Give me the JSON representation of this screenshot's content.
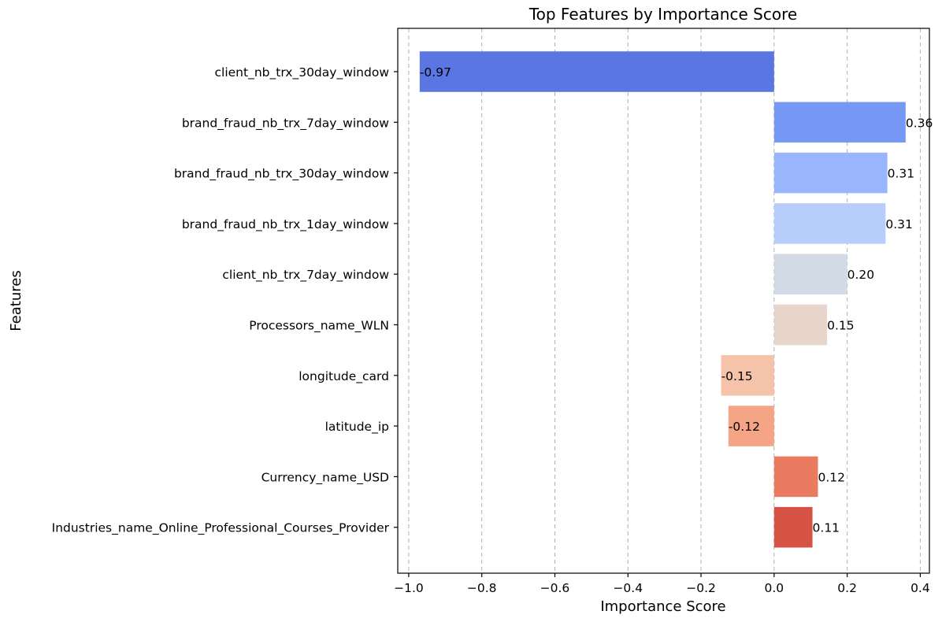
{
  "chart_data": {
    "type": "bar",
    "orientation": "horizontal",
    "title": "Top Features by Importance Score",
    "xlabel": "Importance Score",
    "ylabel": "Features",
    "xlim": [
      -1.03,
      0.425
    ],
    "xticks": [
      -1.0,
      -0.8,
      -0.6,
      -0.4,
      -0.2,
      0.0,
      0.2,
      0.4
    ],
    "xtick_labels": [
      "−1.0",
      "−0.8",
      "−0.6",
      "−0.4",
      "−0.2",
      "0.0",
      "0.2",
      "0.4"
    ],
    "grid": "x-dashed",
    "bars": [
      {
        "category": "client_nb_trx_30day_window",
        "value": -0.97,
        "label": "-0.97",
        "color": "#5a76e2"
      },
      {
        "category": "brand_fraud_nb_trx_7day_window",
        "value": 0.36,
        "label": "0.36",
        "color": "#7799f6"
      },
      {
        "category": "brand_fraud_nb_trx_30day_window",
        "value": 0.31,
        "label": "0.31",
        "color": "#98b5fe"
      },
      {
        "category": "brand_fraud_nb_trx_1day_window",
        "value": 0.305,
        "label": "0.31",
        "color": "#b7cdfb"
      },
      {
        "category": "client_nb_trx_7day_window",
        "value": 0.2,
        "label": "0.20",
        "color": "#d3dbe7"
      },
      {
        "category": "Processors_name_WLN",
        "value": 0.145,
        "label": "0.15",
        "color": "#e8d6cc"
      },
      {
        "category": "longitude_card",
        "value": -0.145,
        "label": "-0.15",
        "color": "#f5c2aa"
      },
      {
        "category": "latitude_ip",
        "value": -0.125,
        "label": "-0.12",
        "color": "#f5a586"
      },
      {
        "category": "Currency_name_USD",
        "value": 0.12,
        "label": "0.12",
        "color": "#ea7b60"
      },
      {
        "category": "Industries_name_Online_Professional_Courses_Provider",
        "value": 0.105,
        "label": "0.11",
        "color": "#d65244"
      }
    ]
  }
}
